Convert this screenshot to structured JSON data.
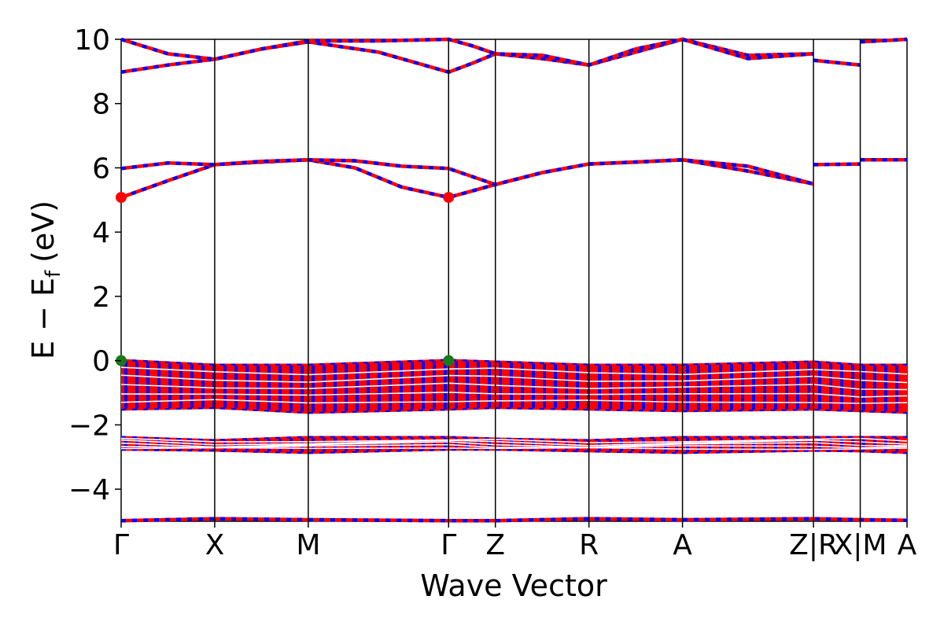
{
  "chart_data": {
    "type": "line",
    "title": "",
    "xlabel": "Wave Vector",
    "ylabel": "E − E",
    "ylabel_subscript": "f",
    "ylabel_unit": "(eV)",
    "ylim": [
      -5,
      10
    ],
    "y_ticks": [
      -4,
      -2,
      0,
      2,
      4,
      6,
      8,
      10
    ],
    "y_tick_labels": [
      "−4",
      "−2",
      "0",
      "2",
      "4",
      "6",
      "8",
      "10"
    ],
    "x_ticks": [
      0,
      1,
      2,
      3.5,
      4,
      5,
      6,
      7.4,
      7.9,
      8.4
    ],
    "x_tick_labels": [
      "Γ",
      "X",
      "M",
      "Γ",
      "Z",
      "R",
      "A",
      "Z|R",
      "X|M",
      "A"
    ],
    "xlim": [
      0,
      8.4
    ],
    "grid": false,
    "legend": "none",
    "colors": {
      "band_primary": "#ff0000",
      "band_dash": "#0000ff",
      "vbm_marker": "#1a7a1a",
      "cbm_marker": "#ff0000",
      "kpath_line": "#000000"
    },
    "series": [
      {
        "band": "conduction-upper-1",
        "x": [
          0,
          0.5,
          1,
          1.5,
          2,
          2.75,
          3.5,
          3.75,
          4,
          4.5,
          5,
          5.5,
          6,
          6.7,
          7.4
        ],
        "y": [
          8.98,
          9.2,
          9.38,
          9.7,
          9.92,
          9.6,
          8.98,
          9.25,
          9.55,
          9.4,
          9.2,
          9.6,
          10.0,
          9.5,
          9.55
        ]
      },
      {
        "band": "conduction-upper-2",
        "x": [
          0,
          0.5,
          1,
          1.5,
          2,
          2.75,
          3.5,
          3.75,
          4,
          4.5,
          5,
          5.5,
          6,
          6.7,
          7.4
        ],
        "y": [
          10.0,
          9.55,
          9.38,
          9.7,
          9.95,
          9.95,
          10.0,
          9.8,
          9.55,
          9.5,
          9.2,
          9.7,
          10.0,
          9.4,
          9.55
        ]
      },
      {
        "band": "conduction-upper-3",
        "x": [
          7.4,
          7.9
        ],
        "y": [
          9.35,
          9.2
        ]
      },
      {
        "band": "conduction-upper-4",
        "x": [
          7.9,
          8.4
        ],
        "y": [
          9.92,
          10.0
        ]
      },
      {
        "band": "conduction-lower-1",
        "x": [
          0,
          0.5,
          1,
          1.5,
          2,
          2.5,
          3,
          3.5,
          4,
          4.5,
          5,
          5.5,
          6,
          6.7,
          7.4
        ],
        "y": [
          5.08,
          5.6,
          6.1,
          6.18,
          6.25,
          6.0,
          5.4,
          5.08,
          5.48,
          5.85,
          6.12,
          6.18,
          6.25,
          5.9,
          5.5
        ]
      },
      {
        "band": "conduction-lower-2",
        "x": [
          0,
          0.5,
          1,
          1.5,
          2,
          2.5,
          3,
          3.5,
          4,
          4.5,
          5,
          5.5,
          6,
          6.7,
          7.4
        ],
        "y": [
          5.98,
          6.15,
          6.1,
          6.2,
          6.25,
          6.22,
          6.05,
          5.98,
          5.48,
          5.85,
          6.12,
          6.18,
          6.25,
          6.05,
          5.5
        ]
      },
      {
        "band": "conduction-lower-3",
        "x": [
          7.4,
          7.9
        ],
        "y": [
          6.1,
          6.12
        ]
      },
      {
        "band": "conduction-lower-4",
        "x": [
          7.9,
          8.4
        ],
        "y": [
          6.25,
          6.25
        ]
      },
      {
        "band": "valence-top",
        "x": [
          0,
          1,
          2,
          3.5,
          4,
          5,
          6,
          7.4,
          7.9,
          8.4
        ],
        "y": [
          0.0,
          -0.15,
          -0.15,
          0.0,
          -0.05,
          -0.15,
          -0.15,
          -0.05,
          -0.15,
          -0.15
        ]
      },
      {
        "band": "valence-bottom",
        "x": [
          0,
          1,
          2,
          3.5,
          4,
          5,
          6,
          7.4,
          7.9,
          8.4
        ],
        "y": [
          -1.5,
          -1.45,
          -1.6,
          -1.5,
          -1.45,
          -1.5,
          -1.55,
          -1.5,
          -1.55,
          -1.6
        ]
      },
      {
        "band": "lower-valence-top",
        "x": [
          0,
          1,
          2,
          3.5,
          4,
          5,
          6,
          7.4,
          7.9,
          8.4
        ],
        "y": [
          -2.4,
          -2.5,
          -2.4,
          -2.4,
          -2.45,
          -2.5,
          -2.4,
          -2.4,
          -2.4,
          -2.4
        ]
      },
      {
        "band": "lower-valence-bottom",
        "x": [
          0,
          1,
          2,
          3.5,
          4,
          5,
          6,
          7.4,
          7.9,
          8.4
        ],
        "y": [
          -2.75,
          -2.78,
          -2.85,
          -2.75,
          -2.75,
          -2.8,
          -2.85,
          -2.78,
          -2.8,
          -2.85
        ]
      },
      {
        "band": "deep-band",
        "x": [
          0,
          1,
          2,
          3.5,
          4,
          5,
          6,
          7.4,
          7.9,
          8.4
        ],
        "y": [
          -4.98,
          -4.92,
          -4.95,
          -4.98,
          -4.98,
          -4.92,
          -4.95,
          -4.92,
          -4.95,
          -4.97
        ]
      }
    ],
    "markers": [
      {
        "kind": "vbm",
        "x": [
          0,
          3.5
        ],
        "y": [
          0.0,
          0.0
        ]
      },
      {
        "kind": "cbm",
        "x": [
          0,
          3.5
        ],
        "y": [
          5.08,
          5.08
        ]
      }
    ],
    "discontinuities_at": [
      7.4,
      7.9
    ]
  }
}
